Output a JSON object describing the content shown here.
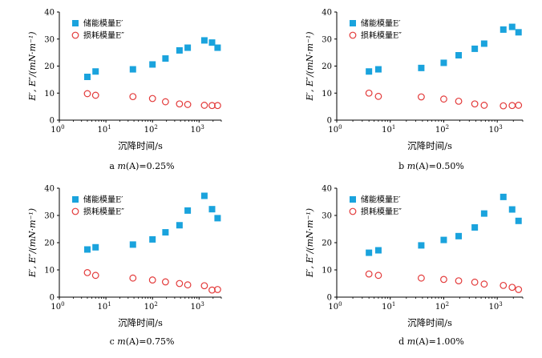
{
  "colors": {
    "storage": "#1aa3dd",
    "loss": "#e33a3a",
    "axis": "#000000"
  },
  "chart_data": [
    {
      "type": "scatter",
      "caption": "a m(A)=0.25%",
      "caption_prefix": "a ",
      "caption_var": "m",
      "caption_rest": "(A)=0.25%",
      "xlabel": "沉降时间/s",
      "ylabel": "E′, E″/(mN·m⁻¹)",
      "xscale": "log",
      "xlim": [
        1,
        3000
      ],
      "ylim": [
        0,
        40
      ],
      "yticks": [
        "0",
        "10",
        "20",
        "30",
        "40"
      ],
      "xticks": [
        {
          "base": "10",
          "exp": "0"
        },
        {
          "base": "10",
          "exp": "1"
        },
        {
          "base": "10",
          "exp": "2"
        },
        {
          "base": "10",
          "exp": "3"
        }
      ],
      "legend": {
        "position": "top-left",
        "entries": [
          "储能模量E′",
          "损耗模量E″"
        ]
      },
      "series": [
        {
          "name": "储能模量E′",
          "marker": "square",
          "x": [
            4,
            6,
            38,
            100,
            190,
            380,
            570,
            1300,
            1900,
            2500
          ],
          "values": [
            16,
            18,
            18.8,
            20.6,
            22.8,
            25.8,
            26.8,
            29.5,
            28.7,
            26.8
          ]
        },
        {
          "name": "损耗模量E″",
          "marker": "circle-open",
          "x": [
            4,
            6,
            38,
            100,
            190,
            380,
            570,
            1300,
            1900,
            2500
          ],
          "values": [
            9.8,
            9.2,
            8.7,
            8.0,
            6.8,
            6.0,
            5.8,
            5.5,
            5.4,
            5.4
          ]
        }
      ]
    },
    {
      "type": "scatter",
      "caption": "b m(A)=0.50%",
      "caption_prefix": "b ",
      "caption_var": "m",
      "caption_rest": "(A)=0.50%",
      "xlabel": "沉降时间/s",
      "ylabel": "E′, E″/(mN·m⁻¹)",
      "xscale": "log",
      "xlim": [
        1,
        3000
      ],
      "ylim": [
        0,
        40
      ],
      "yticks": [
        "0",
        "10",
        "20",
        "30",
        "40"
      ],
      "xticks": [
        {
          "base": "10",
          "exp": "0"
        },
        {
          "base": "10",
          "exp": "1"
        },
        {
          "base": "10",
          "exp": "2"
        },
        {
          "base": "10",
          "exp": "3"
        }
      ],
      "legend": {
        "position": "top-left",
        "entries": [
          "储能模量E′",
          "损耗模量E″"
        ]
      },
      "series": [
        {
          "name": "储能模量E′",
          "marker": "square",
          "x": [
            4,
            6,
            38,
            100,
            190,
            380,
            570,
            1300,
            1900,
            2500
          ],
          "values": [
            18,
            18.8,
            19.3,
            21.2,
            24.0,
            26.4,
            28.3,
            33.5,
            34.5,
            32.5
          ]
        },
        {
          "name": "损耗模量E″",
          "marker": "circle-open",
          "x": [
            4,
            6,
            38,
            100,
            190,
            380,
            570,
            1300,
            1900,
            2500
          ],
          "values": [
            10.0,
            8.8,
            8.6,
            7.8,
            7.0,
            6.0,
            5.5,
            5.3,
            5.4,
            5.5
          ]
        }
      ]
    },
    {
      "type": "scatter",
      "caption": "c m(A)=0.75%",
      "caption_prefix": "c ",
      "caption_var": "m",
      "caption_rest": "(A)=0.75%",
      "xlabel": "沉降时间/s",
      "ylabel": "E′, E″/(mN·m⁻¹)",
      "xscale": "log",
      "xlim": [
        1,
        3000
      ],
      "ylim": [
        0,
        40
      ],
      "yticks": [
        "0",
        "10",
        "20",
        "30",
        "40"
      ],
      "xticks": [
        {
          "base": "10",
          "exp": "0"
        },
        {
          "base": "10",
          "exp": "1"
        },
        {
          "base": "10",
          "exp": "2"
        },
        {
          "base": "10",
          "exp": "3"
        }
      ],
      "legend": {
        "position": "top-left",
        "entries": [
          "储能模量E′",
          "损耗模量E″"
        ]
      },
      "series": [
        {
          "name": "储能模量E′",
          "marker": "square",
          "x": [
            4,
            6,
            38,
            100,
            190,
            380,
            570,
            1300,
            1900,
            2500
          ],
          "values": [
            17.5,
            18.3,
            19.3,
            21.2,
            23.8,
            26.4,
            31.8,
            37.2,
            32.3,
            29.0
          ]
        },
        {
          "name": "损耗模量E″",
          "marker": "circle-open",
          "x": [
            4,
            6,
            38,
            100,
            190,
            380,
            570,
            1300,
            1900,
            2500
          ],
          "values": [
            9.0,
            8.0,
            7.0,
            6.3,
            5.6,
            5.0,
            4.5,
            4.2,
            2.6,
            2.8
          ]
        }
      ]
    },
    {
      "type": "scatter",
      "caption": "d m(A)=1.00%",
      "caption_prefix": "d ",
      "caption_var": "m",
      "caption_rest": "(A)=1.00%",
      "xlabel": "沉降时间/s",
      "ylabel": "E′, E″/(mN·m⁻¹)",
      "xscale": "log",
      "xlim": [
        1,
        3000
      ],
      "ylim": [
        0,
        40
      ],
      "yticks": [
        "0",
        "10",
        "20",
        "30",
        "40"
      ],
      "xticks": [
        {
          "base": "10",
          "exp": "0"
        },
        {
          "base": "10",
          "exp": "1"
        },
        {
          "base": "10",
          "exp": "2"
        },
        {
          "base": "10",
          "exp": "3"
        }
      ],
      "legend": {
        "position": "top-left",
        "entries": [
          "储能模量E′",
          "损耗模量E″"
        ]
      },
      "series": [
        {
          "name": "储能模量E′",
          "marker": "square",
          "x": [
            4,
            6,
            38,
            100,
            190,
            380,
            570,
            1300,
            1900,
            2500
          ],
          "values": [
            16.3,
            17.2,
            19.0,
            21.0,
            22.4,
            25.6,
            30.7,
            36.8,
            32.2,
            28.0
          ]
        },
        {
          "name": "损耗模量E″",
          "marker": "circle-open",
          "x": [
            4,
            6,
            38,
            100,
            190,
            380,
            570,
            1300,
            1900,
            2500
          ],
          "values": [
            8.5,
            8.0,
            7.0,
            6.5,
            6.0,
            5.5,
            4.8,
            4.3,
            3.6,
            2.8
          ]
        }
      ]
    }
  ]
}
